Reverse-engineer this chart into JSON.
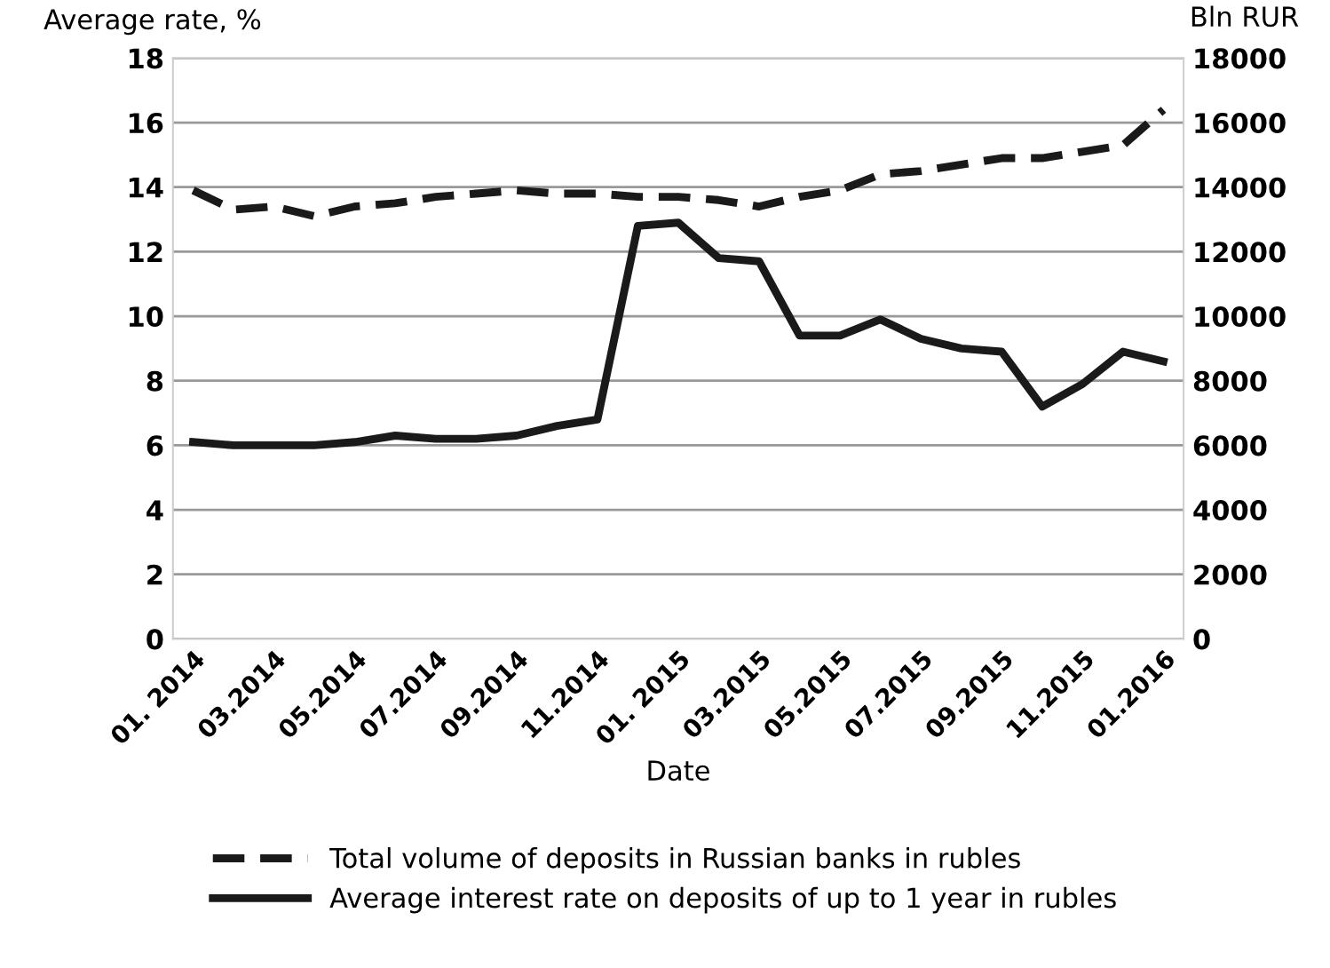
{
  "chart_data": {
    "type": "line",
    "xlabel": "Date",
    "ylabel": "Average rate, %",
    "y2label": "Bln RUR",
    "categories": [
      "01. 2014",
      null,
      "03.2014",
      null,
      "05.2014",
      null,
      "07.2014",
      null,
      "09.2014",
      null,
      "11.2014",
      null,
      "01. 2015",
      null,
      "03.2015",
      null,
      "05.2015",
      null,
      "07.2015",
      null,
      "09.2015",
      null,
      "11.2015",
      null,
      "01.2016"
    ],
    "series": [
      {
        "name": "Total volume of deposits in Russian banks in rubles",
        "color": "#1a1a1a",
        "line_style": "dashed",
        "axis": "y2",
        "values": [
          13900,
          13300,
          13400,
          13100,
          13400,
          13500,
          13700,
          13800,
          13900,
          13800,
          13800,
          13700,
          13700,
          13600,
          13400,
          13700,
          13900,
          14400,
          14500,
          14700,
          14900,
          14900,
          15100,
          15300,
          16400
        ]
      },
      {
        "name": "Average interest rate on deposits of up to 1 year in rubles",
        "color": "#1a1a1a",
        "line_style": "solid",
        "values": [
          6.1,
          6.0,
          6.0,
          6.0,
          6.1,
          6.3,
          6.2,
          6.2,
          6.3,
          6.6,
          6.8,
          12.8,
          12.9,
          11.8,
          11.7,
          9.4,
          9.4,
          9.9,
          9.3,
          9.0,
          8.9,
          7.2,
          7.9,
          8.9,
          8.6
        ]
      }
    ],
    "ylim": [
      0,
      18
    ],
    "yticks": [
      0,
      2,
      4,
      6,
      8,
      10,
      12,
      14,
      16,
      18
    ],
    "y2lim": [
      0,
      18000
    ],
    "y2ticks": [
      0,
      2000,
      4000,
      6000,
      8000,
      10000,
      12000,
      14000,
      16000,
      18000
    ],
    "grid": "y",
    "legend": "bottom"
  }
}
